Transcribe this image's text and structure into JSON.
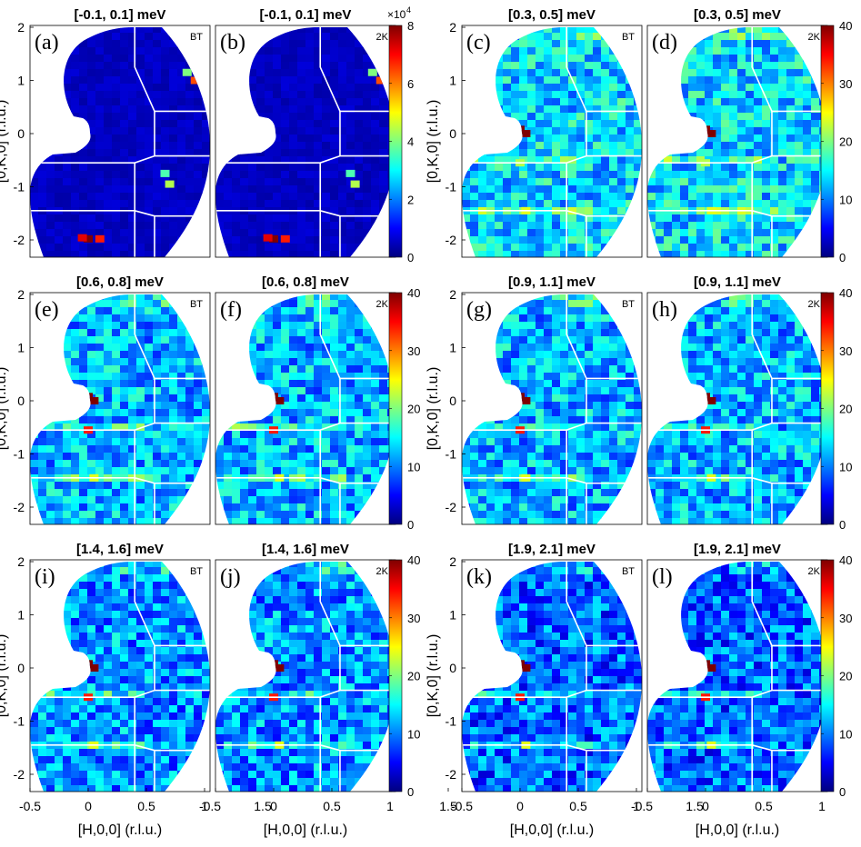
{
  "figure": {
    "ylabel": "[0,K,0] (r.l.u.)",
    "xlabel": "[H,0,0] (r.l.u.)",
    "x_ticks": [
      "-0.5",
      "0",
      "0.5",
      "1",
      "1.5"
    ],
    "y_ticks": [
      "2",
      "1",
      "0",
      "-1",
      "-2"
    ]
  },
  "chart_data": [
    {
      "type": "heatmap",
      "panel": "(a)",
      "title": "[-0.1, 0.1] meV",
      "tag": "BT",
      "xlim": [
        -0.5,
        1.5
      ],
      "ylim": [
        -2.2,
        2.2
      ],
      "clim": [
        0,
        80000
      ]
    },
    {
      "type": "heatmap",
      "panel": "(b)",
      "title": "[-0.1, 0.1] meV",
      "tag": "2K",
      "xlim": [
        -0.5,
        1.5
      ],
      "ylim": [
        -2.2,
        2.2
      ],
      "clim": [
        0,
        80000
      ]
    },
    {
      "type": "heatmap",
      "panel": "(c)",
      "title": "[0.3, 0.5] meV",
      "tag": "BT",
      "xlim": [
        -0.5,
        1.5
      ],
      "ylim": [
        -2.2,
        2.2
      ],
      "clim": [
        0,
        40
      ]
    },
    {
      "type": "heatmap",
      "panel": "(d)",
      "title": "[0.3, 0.5] meV",
      "tag": "2K",
      "xlim": [
        -0.5,
        1.5
      ],
      "ylim": [
        -2.2,
        2.2
      ],
      "clim": [
        0,
        40
      ]
    },
    {
      "type": "heatmap",
      "panel": "(e)",
      "title": "[0.6, 0.8] meV",
      "tag": "BT",
      "xlim": [
        -0.5,
        1.5
      ],
      "ylim": [
        -2.2,
        2.2
      ],
      "clim": [
        0,
        40
      ]
    },
    {
      "type": "heatmap",
      "panel": "(f)",
      "title": "[0.6, 0.8] meV",
      "tag": "2K",
      "xlim": [
        -0.5,
        1.5
      ],
      "ylim": [
        -2.2,
        2.2
      ],
      "clim": [
        0,
        40
      ]
    },
    {
      "type": "heatmap",
      "panel": "(g)",
      "title": "[0.9, 1.1] meV",
      "tag": "BT",
      "xlim": [
        -0.5,
        1.5
      ],
      "ylim": [
        -2.2,
        2.2
      ],
      "clim": [
        0,
        40
      ]
    },
    {
      "type": "heatmap",
      "panel": "(h)",
      "title": "[0.9, 1.1] meV",
      "tag": "2K",
      "xlim": [
        -0.5,
        1.5
      ],
      "ylim": [
        -2.2,
        2.2
      ],
      "clim": [
        0,
        40
      ]
    },
    {
      "type": "heatmap",
      "panel": "(i)",
      "title": "[1.4, 1.6] meV",
      "tag": "BT",
      "xlim": [
        -0.5,
        1.5
      ],
      "ylim": [
        -2.2,
        2.2
      ],
      "clim": [
        0,
        40
      ]
    },
    {
      "type": "heatmap",
      "panel": "(j)",
      "title": "[1.4, 1.6] meV",
      "tag": "2K",
      "xlim": [
        -0.5,
        1.5
      ],
      "ylim": [
        -2.2,
        2.2
      ],
      "clim": [
        0,
        40
      ]
    },
    {
      "type": "heatmap",
      "panel": "(k)",
      "title": "[1.9, 2.1] meV",
      "tag": "BT",
      "xlim": [
        -0.5,
        1.5
      ],
      "ylim": [
        -2.2,
        2.2
      ],
      "clim": [
        0,
        40
      ]
    },
    {
      "type": "heatmap",
      "panel": "(l)",
      "title": "[1.9, 2.1] meV",
      "tag": "2K",
      "xlim": [
        -0.5,
        1.5
      ],
      "ylim": [
        -2.2,
        2.2
      ],
      "clim": [
        0,
        40
      ]
    }
  ],
  "colorbars": [
    {
      "ticks": [
        "0",
        "2",
        "4",
        "6",
        "8"
      ],
      "multiplier": "×10",
      "exponent": "4"
    },
    {
      "ticks": [
        "0",
        "10",
        "20",
        "30",
        "40"
      ]
    },
    {
      "ticks": [
        "0",
        "10",
        "20",
        "30",
        "40"
      ]
    },
    {
      "ticks": [
        "0",
        "10",
        "20",
        "30",
        "40"
      ]
    },
    {
      "ticks": [
        "0",
        "10",
        "20",
        "30",
        "40"
      ]
    },
    {
      "ticks": [
        "0",
        "10",
        "20",
        "30",
        "40"
      ]
    }
  ],
  "colormap": [
    "#00007f",
    "#0000ff",
    "#007fff",
    "#00ffff",
    "#7fff7f",
    "#ffff00",
    "#ff7f00",
    "#ff0000",
    "#7f0000"
  ]
}
